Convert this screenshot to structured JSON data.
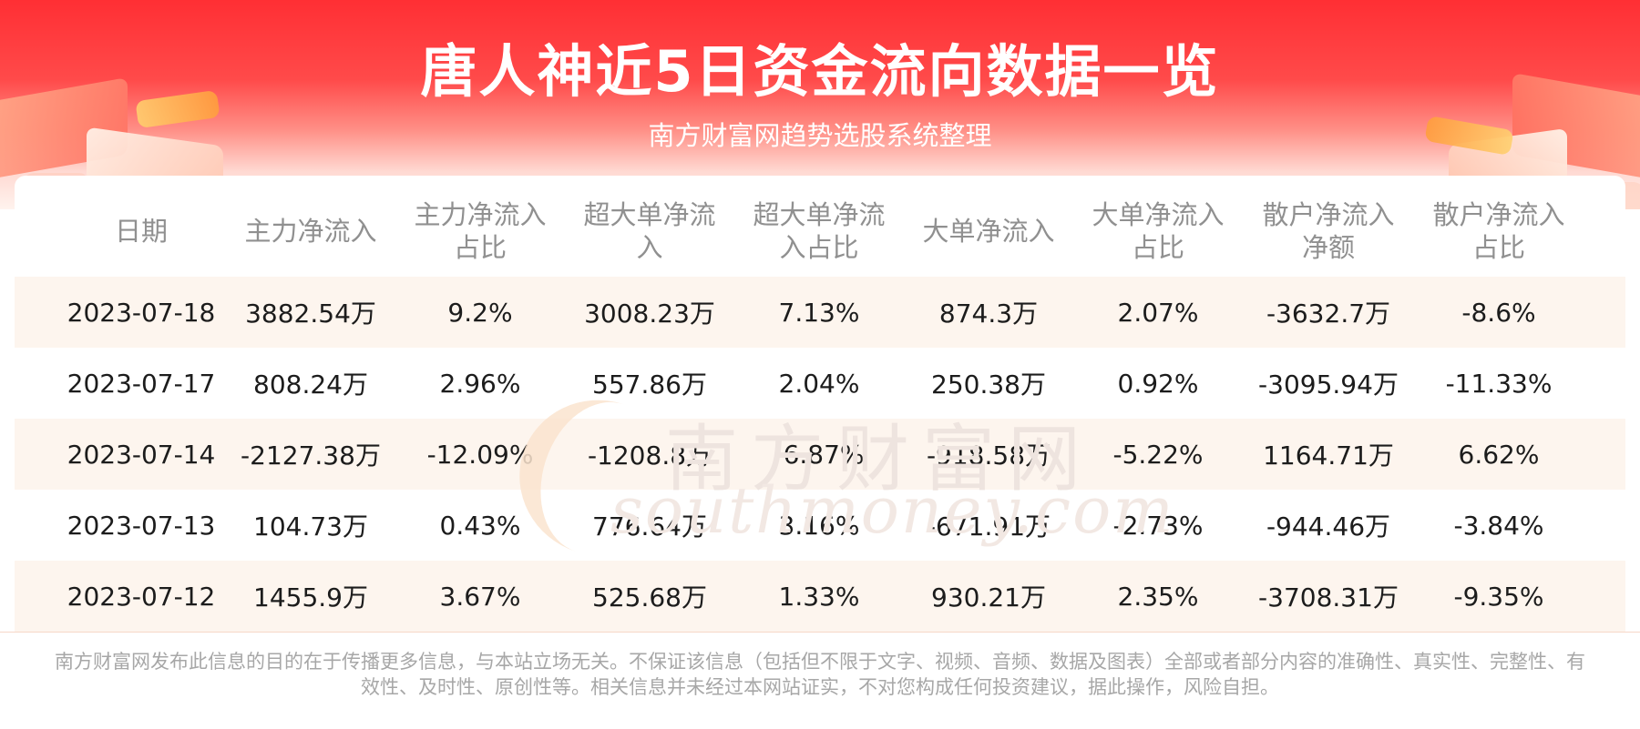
{
  "header": {
    "title": "唐人神近5日资金流向数据一览",
    "subtitle": "南方财富网趋势选股系统整理"
  },
  "watermark": {
    "cn": "南方财富网",
    "en": "southmoney.com"
  },
  "table": {
    "columns": [
      "日期",
      "主力净流入",
      "主力净流入\n占比",
      "超大单净流\n入",
      "超大单净流\n入占比",
      "大单净流入",
      "大单净流入\n占比",
      "散户净流入\n净额",
      "散户净流入\n占比"
    ],
    "rows": [
      [
        "2023-07-18",
        "3882.54万",
        "9.2%",
        "3008.23万",
        "7.13%",
        "874.3万",
        "2.07%",
        "-3632.7万",
        "-8.6%"
      ],
      [
        "2023-07-17",
        "808.24万",
        "2.96%",
        "557.86万",
        "2.04%",
        "250.38万",
        "0.92%",
        "-3095.94万",
        "-11.33%"
      ],
      [
        "2023-07-14",
        "-2127.38万",
        "-12.09%",
        "-1208.8万",
        "-6.87%",
        "-918.58万",
        "-5.22%",
        "1164.71万",
        "6.62%"
      ],
      [
        "2023-07-13",
        "104.73万",
        "0.43%",
        "776.64万",
        "3.16%",
        "-671.91万",
        "-2.73%",
        "-944.46万",
        "-3.84%"
      ],
      [
        "2023-07-12",
        "1455.9万",
        "3.67%",
        "525.68万",
        "1.33%",
        "930.21万",
        "2.35%",
        "-3708.31万",
        "-9.35%"
      ]
    ]
  },
  "footer": {
    "disclaimer": "南方财富网发布此信息的目的在于传播更多信息，与本站立场无关。不保证该信息（包括但不限于文字、视频、音频、数据及图表）全部或者部分内容的准确性、真实性、完整性、有效性、及时性、原创性等。相关信息并未经过本网站证实，不对您构成任何投资建议，据此操作，风险自担。"
  },
  "colors": {
    "banner_red": "#ff2f34",
    "row_shade": "#fdf5ee",
    "header_text": "#909090",
    "body_text": "#1c1c1c"
  }
}
